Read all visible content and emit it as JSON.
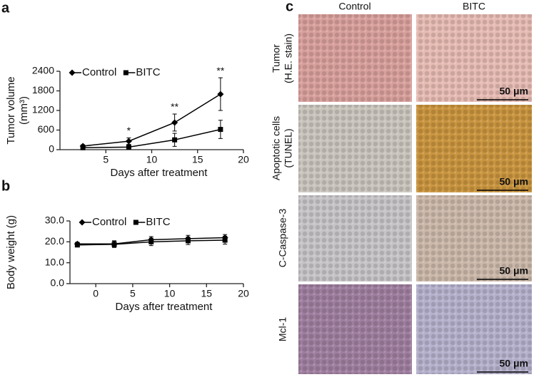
{
  "chart_data": [
    {
      "type": "line",
      "panel": "a",
      "xlabel": "Days after treatment",
      "ylabel": [
        "Tumor volume",
        "(mm³)"
      ],
      "x": [
        2.5,
        7.5,
        12.5,
        17.5
      ],
      "series": [
        {
          "name": "Control",
          "color": "#000000",
          "marker": "diamond",
          "values": [
            110,
            260,
            830,
            1700
          ],
          "errors": [
            40,
            100,
            260,
            500
          ]
        },
        {
          "name": "BITC",
          "color": "#000000",
          "marker": "square",
          "values": [
            60,
            80,
            300,
            620
          ],
          "errors": [
            30,
            60,
            200,
            280
          ]
        }
      ],
      "significance": [
        null,
        "*",
        "**",
        "**"
      ],
      "xlim": [
        0,
        20
      ],
      "xticks": [
        5,
        10,
        15,
        20
      ],
      "ylim": [
        0,
        2400
      ],
      "yticks": [
        0,
        600,
        1200,
        1800,
        2400
      ],
      "grid": false,
      "legend": "top-left"
    },
    {
      "type": "line",
      "panel": "b",
      "xlabel": "Days after treatment",
      "ylabel": [
        "Body weight (g)"
      ],
      "x": [
        -2.5,
        2.5,
        7.5,
        12.5,
        17.5
      ],
      "series": [
        {
          "name": "Control",
          "color": "#000000",
          "marker": "diamond",
          "values": [
            19,
            19,
            21,
            21.5,
            22
          ],
          "errors": [
            0.8,
            1.5,
            1.5,
            1.6,
            1.5
          ]
        },
        {
          "name": "BITC",
          "color": "#000000",
          "marker": "square",
          "values": [
            18.5,
            18.8,
            20,
            20.5,
            20.8
          ],
          "errors": [
            0.8,
            1.5,
            1.8,
            1.8,
            1.9
          ]
        }
      ],
      "xlim": [
        -3.5,
        20
      ],
      "xticks": [
        0,
        5,
        10,
        15,
        20
      ],
      "ylim": [
        0,
        30
      ],
      "yticks": [
        {
          "value": 0,
          "label": "0.0"
        },
        {
          "value": 10,
          "label": "10.0"
        },
        {
          "value": 20,
          "label": "20.0"
        },
        {
          "value": 30,
          "label": "30.0"
        }
      ],
      "grid": false,
      "legend": "top-left"
    }
  ],
  "panel_c": {
    "label": "c",
    "columns": [
      "Control",
      "BITC"
    ],
    "rows": [
      [
        "Tumor",
        "(H.E. stain)"
      ],
      [
        "Apoptotic cells",
        "(TUNEL)"
      ],
      [
        "C-Caspase-3"
      ],
      [
        "Mcl-1"
      ]
    ],
    "scale_bar": "50 μm"
  }
}
